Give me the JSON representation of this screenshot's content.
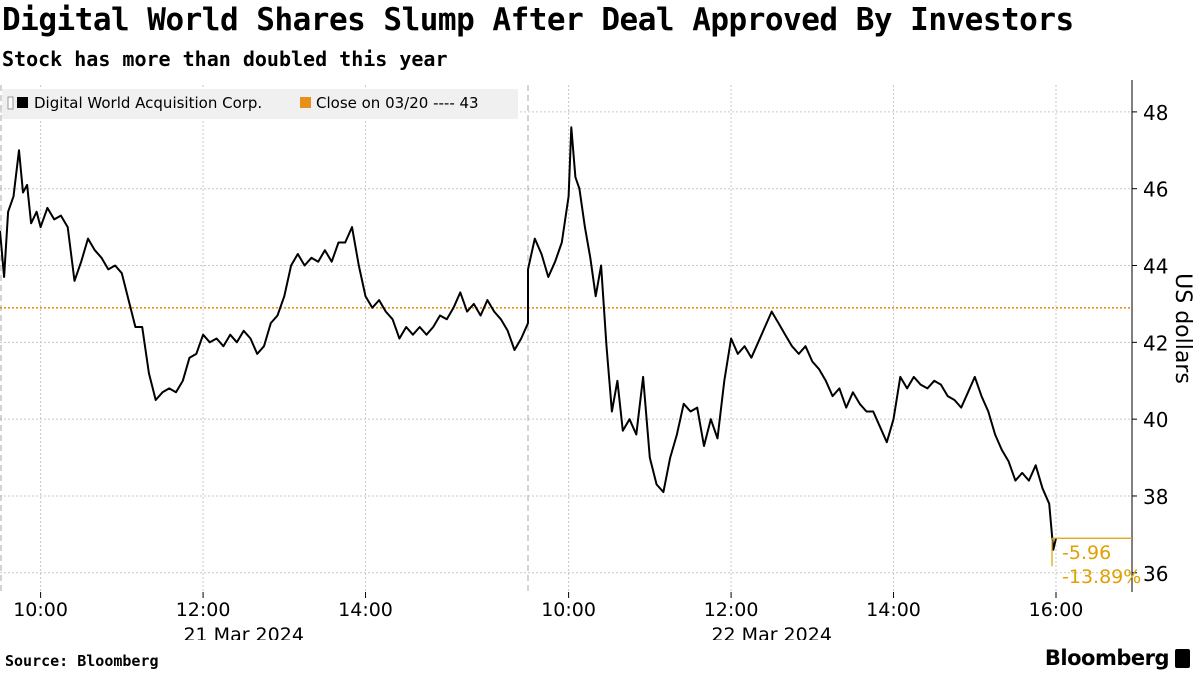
{
  "header": {
    "title": "Digital World Shares Slump After Deal Approved By Investors",
    "subtitle": "Stock has more than doubled this year"
  },
  "footer": {
    "source": "Source: Bloomberg",
    "brand": "Bloomberg"
  },
  "colors": {
    "price_line": "#000000",
    "reference_line": "#e8901a",
    "annotation": "#e0a000",
    "grid": "#c8c8c8"
  },
  "chart_data": {
    "type": "line",
    "ylabel": "US dollars",
    "ylim": [
      35.5,
      48.7
    ],
    "y_ticks": [
      36,
      38,
      40,
      42,
      44,
      46,
      48
    ],
    "x_ticks": [
      {
        "label": "10:00",
        "day": "21 Mar 2024",
        "time": "10:00"
      },
      {
        "label": "12:00",
        "day": "21 Mar 2024",
        "time": "12:00"
      },
      {
        "label": "14:00",
        "day": "21 Mar 2024",
        "time": "14:00"
      },
      {
        "label": "10:00",
        "day": "22 Mar 2024",
        "time": "10:00"
      },
      {
        "label": "12:00",
        "day": "22 Mar 2024",
        "time": "12:00"
      },
      {
        "label": "14:00",
        "day": "22 Mar 2024",
        "time": "14:00"
      },
      {
        "label": "16:00",
        "day": "22 Mar 2024",
        "time": "16:00"
      }
    ],
    "day_labels": [
      "21 Mar 2024",
      "22 Mar 2024"
    ],
    "legend": [
      {
        "name": "Digital World Acquisition Corp.",
        "color": "#000000"
      },
      {
        "name": "Close on 03/20 ---- 43",
        "color": "#e8901a"
      }
    ],
    "legend_placement": "top-left",
    "reference_value": 42.9,
    "annotation": {
      "change": "-5.96",
      "percent": "-13.89%"
    },
    "series": [
      {
        "name": "Digital World Acquisition Corp.",
        "points": [
          [
            "21 Mar 2024",
            "09:30",
            44.9
          ],
          [
            "21 Mar 2024",
            "09:33",
            43.7
          ],
          [
            "21 Mar 2024",
            "09:36",
            45.4
          ],
          [
            "21 Mar 2024",
            "09:40",
            45.8
          ],
          [
            "21 Mar 2024",
            "09:44",
            47.0
          ],
          [
            "21 Mar 2024",
            "09:47",
            45.9
          ],
          [
            "21 Mar 2024",
            "09:50",
            46.1
          ],
          [
            "21 Mar 2024",
            "09:53",
            45.1
          ],
          [
            "21 Mar 2024",
            "09:57",
            45.4
          ],
          [
            "21 Mar 2024",
            "10:00",
            45.0
          ],
          [
            "21 Mar 2024",
            "10:05",
            45.5
          ],
          [
            "21 Mar 2024",
            "10:10",
            45.2
          ],
          [
            "21 Mar 2024",
            "10:15",
            45.3
          ],
          [
            "21 Mar 2024",
            "10:20",
            45.0
          ],
          [
            "21 Mar 2024",
            "10:25",
            43.6
          ],
          [
            "21 Mar 2024",
            "10:30",
            44.1
          ],
          [
            "21 Mar 2024",
            "10:35",
            44.7
          ],
          [
            "21 Mar 2024",
            "10:40",
            44.4
          ],
          [
            "21 Mar 2024",
            "10:45",
            44.2
          ],
          [
            "21 Mar 2024",
            "10:50",
            43.9
          ],
          [
            "21 Mar 2024",
            "10:55",
            44.0
          ],
          [
            "21 Mar 2024",
            "11:00",
            43.8
          ],
          [
            "21 Mar 2024",
            "11:05",
            43.1
          ],
          [
            "21 Mar 2024",
            "11:10",
            42.4
          ],
          [
            "21 Mar 2024",
            "11:15",
            42.4
          ],
          [
            "21 Mar 2024",
            "11:20",
            41.2
          ],
          [
            "21 Mar 2024",
            "11:25",
            40.5
          ],
          [
            "21 Mar 2024",
            "11:30",
            40.7
          ],
          [
            "21 Mar 2024",
            "11:35",
            40.8
          ],
          [
            "21 Mar 2024",
            "11:40",
            40.7
          ],
          [
            "21 Mar 2024",
            "11:45",
            41.0
          ],
          [
            "21 Mar 2024",
            "11:50",
            41.6
          ],
          [
            "21 Mar 2024",
            "11:55",
            41.7
          ],
          [
            "21 Mar 2024",
            "12:00",
            42.2
          ],
          [
            "21 Mar 2024",
            "12:05",
            42.0
          ],
          [
            "21 Mar 2024",
            "12:10",
            42.1
          ],
          [
            "21 Mar 2024",
            "12:15",
            41.9
          ],
          [
            "21 Mar 2024",
            "12:20",
            42.2
          ],
          [
            "21 Mar 2024",
            "12:25",
            42.0
          ],
          [
            "21 Mar 2024",
            "12:30",
            42.3
          ],
          [
            "21 Mar 2024",
            "12:35",
            42.1
          ],
          [
            "21 Mar 2024",
            "12:40",
            41.7
          ],
          [
            "21 Mar 2024",
            "12:45",
            41.9
          ],
          [
            "21 Mar 2024",
            "12:50",
            42.5
          ],
          [
            "21 Mar 2024",
            "12:55",
            42.7
          ],
          [
            "21 Mar 2024",
            "13:00",
            43.2
          ],
          [
            "21 Mar 2024",
            "13:05",
            44.0
          ],
          [
            "21 Mar 2024",
            "13:10",
            44.3
          ],
          [
            "21 Mar 2024",
            "13:15",
            44.0
          ],
          [
            "21 Mar 2024",
            "13:20",
            44.2
          ],
          [
            "21 Mar 2024",
            "13:25",
            44.1
          ],
          [
            "21 Mar 2024",
            "13:30",
            44.4
          ],
          [
            "21 Mar 2024",
            "13:35",
            44.1
          ],
          [
            "21 Mar 2024",
            "13:40",
            44.6
          ],
          [
            "21 Mar 2024",
            "13:45",
            44.6
          ],
          [
            "21 Mar 2024",
            "13:50",
            45.0
          ],
          [
            "21 Mar 2024",
            "13:55",
            44.0
          ],
          [
            "21 Mar 2024",
            "14:00",
            43.2
          ],
          [
            "21 Mar 2024",
            "14:05",
            42.9
          ],
          [
            "21 Mar 2024",
            "14:10",
            43.1
          ],
          [
            "21 Mar 2024",
            "14:15",
            42.8
          ],
          [
            "21 Mar 2024",
            "14:20",
            42.6
          ],
          [
            "21 Mar 2024",
            "14:25",
            42.1
          ],
          [
            "21 Mar 2024",
            "14:30",
            42.4
          ],
          [
            "21 Mar 2024",
            "14:35",
            42.2
          ],
          [
            "21 Mar 2024",
            "14:40",
            42.4
          ],
          [
            "21 Mar 2024",
            "14:45",
            42.2
          ],
          [
            "21 Mar 2024",
            "14:50",
            42.4
          ],
          [
            "21 Mar 2024",
            "14:55",
            42.7
          ],
          [
            "21 Mar 2024",
            "15:00",
            42.6
          ],
          [
            "21 Mar 2024",
            "15:05",
            42.9
          ],
          [
            "21 Mar 2024",
            "15:10",
            43.3
          ],
          [
            "21 Mar 2024",
            "15:15",
            42.8
          ],
          [
            "21 Mar 2024",
            "15:20",
            43.0
          ],
          [
            "21 Mar 2024",
            "15:25",
            42.7
          ],
          [
            "21 Mar 2024",
            "15:30",
            43.1
          ],
          [
            "21 Mar 2024",
            "15:35",
            42.8
          ],
          [
            "21 Mar 2024",
            "15:40",
            42.6
          ],
          [
            "21 Mar 2024",
            "15:45",
            42.3
          ],
          [
            "21 Mar 2024",
            "15:50",
            41.8
          ],
          [
            "21 Mar 2024",
            "15:55",
            42.1
          ],
          [
            "21 Mar 2024",
            "16:00",
            42.5
          ],
          [
            "22 Mar 2024",
            "09:30",
            43.9
          ],
          [
            "22 Mar 2024",
            "09:35",
            44.7
          ],
          [
            "22 Mar 2024",
            "09:40",
            44.3
          ],
          [
            "22 Mar 2024",
            "09:45",
            43.7
          ],
          [
            "22 Mar 2024",
            "09:50",
            44.1
          ],
          [
            "22 Mar 2024",
            "09:55",
            44.6
          ],
          [
            "22 Mar 2024",
            "10:00",
            45.8
          ],
          [
            "22 Mar 2024",
            "10:02",
            47.6
          ],
          [
            "22 Mar 2024",
            "10:05",
            46.3
          ],
          [
            "22 Mar 2024",
            "10:08",
            46.0
          ],
          [
            "22 Mar 2024",
            "10:12",
            45.0
          ],
          [
            "22 Mar 2024",
            "10:16",
            44.2
          ],
          [
            "22 Mar 2024",
            "10:20",
            43.2
          ],
          [
            "22 Mar 2024",
            "10:24",
            44.0
          ],
          [
            "22 Mar 2024",
            "10:28",
            41.9
          ],
          [
            "22 Mar 2024",
            "10:32",
            40.2
          ],
          [
            "22 Mar 2024",
            "10:36",
            41.0
          ],
          [
            "22 Mar 2024",
            "10:40",
            39.7
          ],
          [
            "22 Mar 2024",
            "10:45",
            40.0
          ],
          [
            "22 Mar 2024",
            "10:50",
            39.6
          ],
          [
            "22 Mar 2024",
            "10:55",
            41.1
          ],
          [
            "22 Mar 2024",
            "11:00",
            39.0
          ],
          [
            "22 Mar 2024",
            "11:05",
            38.3
          ],
          [
            "22 Mar 2024",
            "11:10",
            38.1
          ],
          [
            "22 Mar 2024",
            "11:15",
            39.0
          ],
          [
            "22 Mar 2024",
            "11:20",
            39.6
          ],
          [
            "22 Mar 2024",
            "11:25",
            40.4
          ],
          [
            "22 Mar 2024",
            "11:30",
            40.2
          ],
          [
            "22 Mar 2024",
            "11:35",
            40.3
          ],
          [
            "22 Mar 2024",
            "11:40",
            39.3
          ],
          [
            "22 Mar 2024",
            "11:45",
            40.0
          ],
          [
            "22 Mar 2024",
            "11:50",
            39.5
          ],
          [
            "22 Mar 2024",
            "11:55",
            41.0
          ],
          [
            "22 Mar 2024",
            "12:00",
            42.1
          ],
          [
            "22 Mar 2024",
            "12:05",
            41.7
          ],
          [
            "22 Mar 2024",
            "12:10",
            41.9
          ],
          [
            "22 Mar 2024",
            "12:15",
            41.6
          ],
          [
            "22 Mar 2024",
            "12:20",
            42.0
          ],
          [
            "22 Mar 2024",
            "12:25",
            42.4
          ],
          [
            "22 Mar 2024",
            "12:30",
            42.8
          ],
          [
            "22 Mar 2024",
            "12:35",
            42.5
          ],
          [
            "22 Mar 2024",
            "12:40",
            42.2
          ],
          [
            "22 Mar 2024",
            "12:45",
            41.9
          ],
          [
            "22 Mar 2024",
            "12:50",
            41.7
          ],
          [
            "22 Mar 2024",
            "12:55",
            41.9
          ],
          [
            "22 Mar 2024",
            "13:00",
            41.5
          ],
          [
            "22 Mar 2024",
            "13:05",
            41.3
          ],
          [
            "22 Mar 2024",
            "13:10",
            41.0
          ],
          [
            "22 Mar 2024",
            "13:15",
            40.6
          ],
          [
            "22 Mar 2024",
            "13:20",
            40.8
          ],
          [
            "22 Mar 2024",
            "13:25",
            40.3
          ],
          [
            "22 Mar 2024",
            "13:30",
            40.7
          ],
          [
            "22 Mar 2024",
            "13:35",
            40.4
          ],
          [
            "22 Mar 2024",
            "13:40",
            40.2
          ],
          [
            "22 Mar 2024",
            "13:45",
            40.2
          ],
          [
            "22 Mar 2024",
            "13:50",
            39.8
          ],
          [
            "22 Mar 2024",
            "13:55",
            39.4
          ],
          [
            "22 Mar 2024",
            "14:00",
            40.0
          ],
          [
            "22 Mar 2024",
            "14:05",
            41.1
          ],
          [
            "22 Mar 2024",
            "14:10",
            40.8
          ],
          [
            "22 Mar 2024",
            "14:15",
            41.1
          ],
          [
            "22 Mar 2024",
            "14:20",
            40.9
          ],
          [
            "22 Mar 2024",
            "14:25",
            40.8
          ],
          [
            "22 Mar 2024",
            "14:30",
            41.0
          ],
          [
            "22 Mar 2024",
            "14:35",
            40.9
          ],
          [
            "22 Mar 2024",
            "14:40",
            40.6
          ],
          [
            "22 Mar 2024",
            "14:45",
            40.5
          ],
          [
            "22 Mar 2024",
            "14:50",
            40.3
          ],
          [
            "22 Mar 2024",
            "14:55",
            40.7
          ],
          [
            "22 Mar 2024",
            "15:00",
            41.1
          ],
          [
            "22 Mar 2024",
            "15:05",
            40.6
          ],
          [
            "22 Mar 2024",
            "15:10",
            40.2
          ],
          [
            "22 Mar 2024",
            "15:15",
            39.6
          ],
          [
            "22 Mar 2024",
            "15:20",
            39.2
          ],
          [
            "22 Mar 2024",
            "15:25",
            38.9
          ],
          [
            "22 Mar 2024",
            "15:30",
            38.4
          ],
          [
            "22 Mar 2024",
            "15:35",
            38.6
          ],
          [
            "22 Mar 2024",
            "15:40",
            38.4
          ],
          [
            "22 Mar 2024",
            "15:45",
            38.8
          ],
          [
            "22 Mar 2024",
            "15:50",
            38.2
          ],
          [
            "22 Mar 2024",
            "15:55",
            37.8
          ],
          [
            "22 Mar 2024",
            "15:58",
            36.6
          ],
          [
            "22 Mar 2024",
            "16:00",
            36.9
          ]
        ]
      }
    ]
  }
}
